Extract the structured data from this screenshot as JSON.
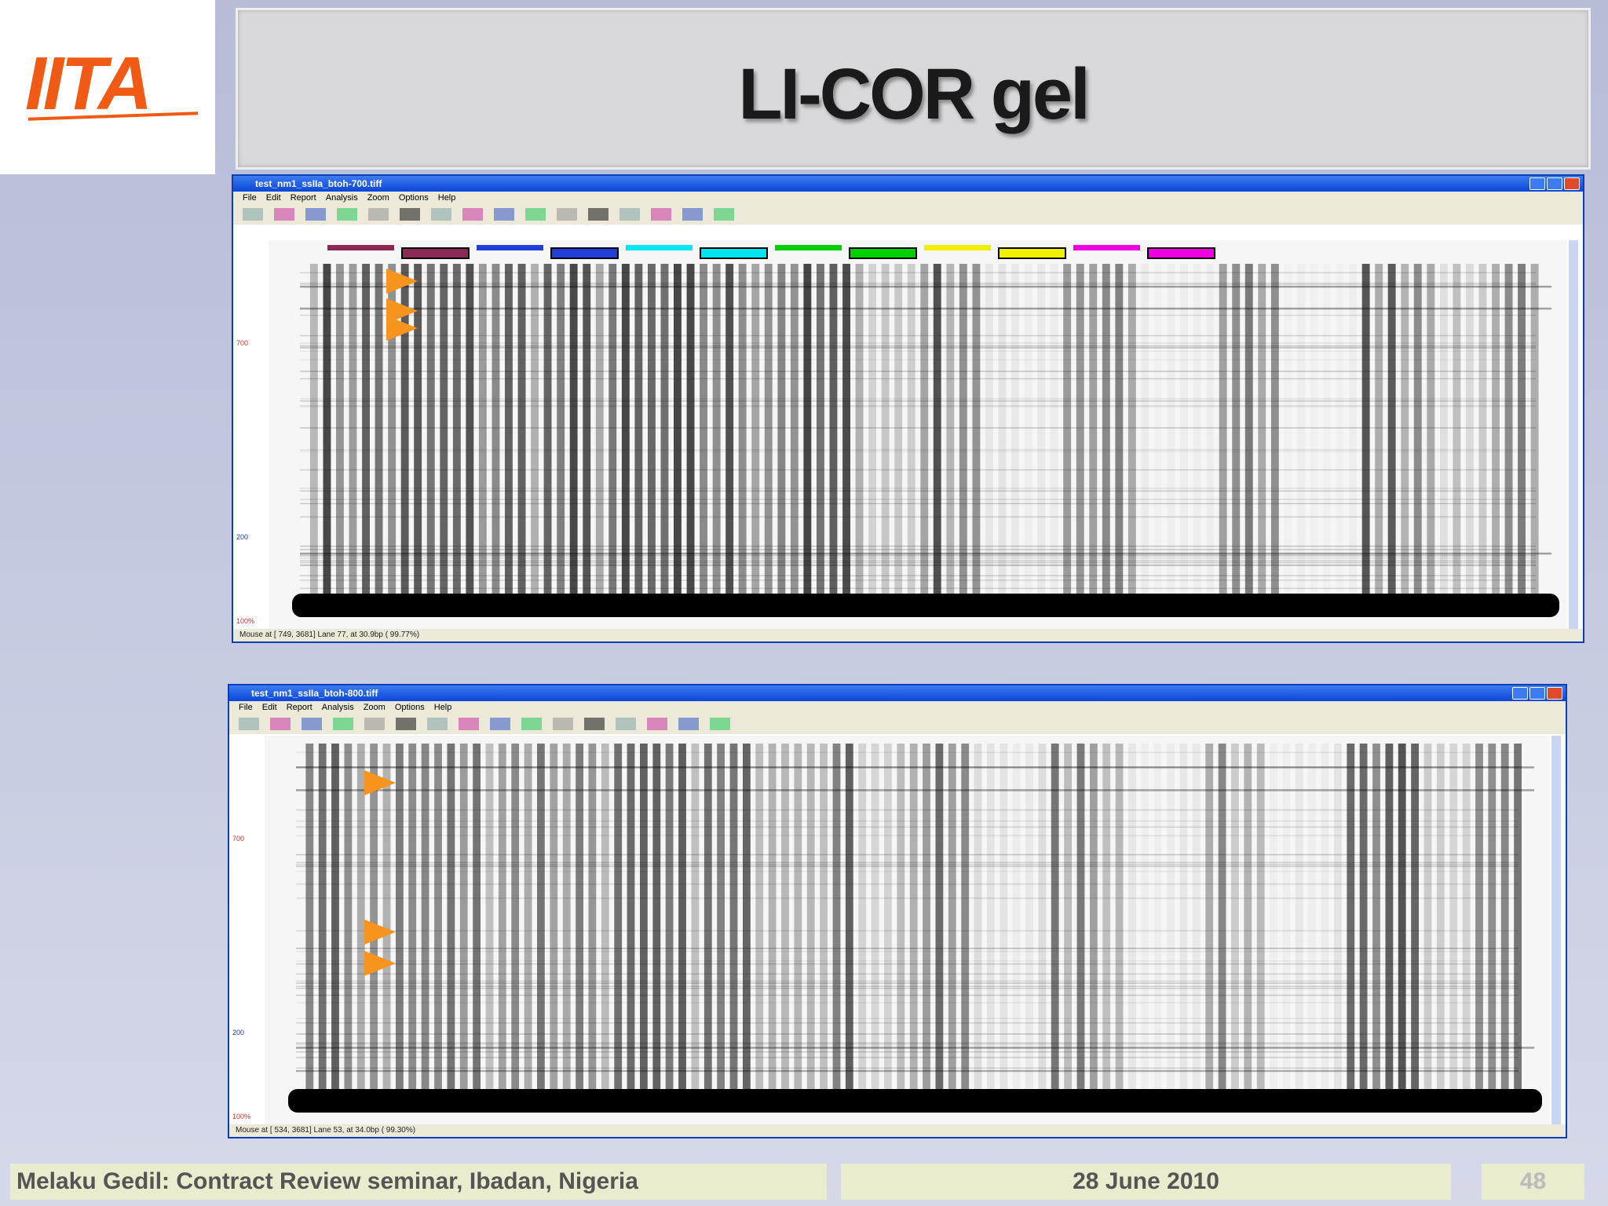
{
  "logo": "IITA",
  "title": "LI-COR gel",
  "windows": [
    {
      "title": "test_nm1_ssIIa_btoh-700.tiff",
      "menu": [
        "File",
        "Edit",
        "Report",
        "Analysis",
        "Zoom",
        "Options",
        "Help"
      ],
      "axis_labels": [
        "700",
        "200",
        "100%"
      ],
      "status": "Mouse at [ 749, 3681] Lane 77, at 30.9bp ( 99.77%)"
    },
    {
      "title": "test_nm1_ssIIa_btoh-800.tiff",
      "menu": [
        "File",
        "Edit",
        "Report",
        "Analysis",
        "Zoom",
        "Options",
        "Help"
      ],
      "axis_labels": [
        "700",
        "200",
        "100%"
      ],
      "status": "Mouse at [ 534, 3681] Lane 53, at 34.0bp ( 99.30%)"
    }
  ],
  "footer": {
    "left": "Melaku Gedil: Contract Review seminar,  Ibadan, Nigeria",
    "date": "28 June 2010",
    "page": "48"
  }
}
